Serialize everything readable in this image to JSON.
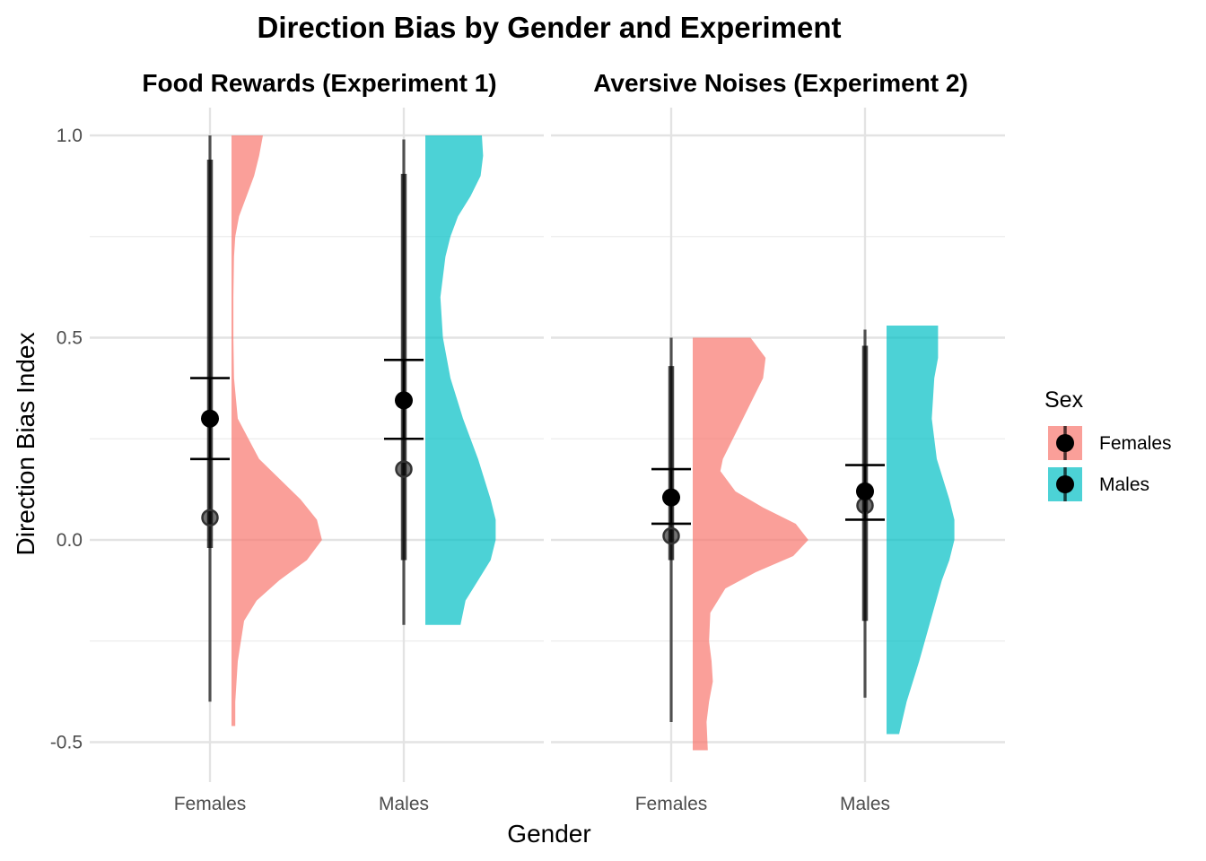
{
  "chart_data": {
    "type": "violin",
    "title": "Direction Bias by Gender and Experiment",
    "xlabel": "Gender",
    "ylabel": "Direction Bias Index",
    "ylim": [
      -0.6,
      1.0
    ],
    "yticks": [
      -0.5,
      0.0,
      0.5,
      1.0
    ],
    "ytick_labels": [
      "-0.5",
      "0.0",
      "0.5",
      "1.0"
    ],
    "categories": [
      "Females",
      "Males"
    ],
    "grid": true,
    "legend": {
      "title": "Sex",
      "position": "right",
      "entries": [
        {
          "label": "Females",
          "color": "#F8766D"
        },
        {
          "label": "Males",
          "color": "#00BFC4"
        }
      ]
    },
    "panels": [
      {
        "title": "Food Rewards (Experiment 1)",
        "groups": [
          {
            "category": "Females",
            "color": "#F8766D",
            "mean": 0.3,
            "ci_low": 0.2,
            "ci_high": 0.4,
            "median": 0.055,
            "q_low": -0.02,
            "q_high": 0.94,
            "min": -0.4,
            "max": 1.0,
            "density": [
              [
                1.0,
                0.25
              ],
              [
                0.95,
                0.22
              ],
              [
                0.9,
                0.18
              ],
              [
                0.85,
                0.12
              ],
              [
                0.8,
                0.06
              ],
              [
                0.75,
                0.03
              ],
              [
                0.7,
                0.02
              ],
              [
                0.6,
                0.015
              ],
              [
                0.5,
                0.015
              ],
              [
                0.4,
                0.02
              ],
              [
                0.3,
                0.05
              ],
              [
                0.2,
                0.22
              ],
              [
                0.1,
                0.55
              ],
              [
                0.05,
                0.68
              ],
              [
                0.0,
                0.72
              ],
              [
                -0.05,
                0.6
              ],
              [
                -0.1,
                0.38
              ],
              [
                -0.15,
                0.2
              ],
              [
                -0.2,
                0.1
              ],
              [
                -0.3,
                0.05
              ],
              [
                -0.4,
                0.03
              ],
              [
                -0.46,
                0.03
              ]
            ]
          },
          {
            "category": "Males",
            "color": "#00BFC4",
            "mean": 0.345,
            "ci_low": 0.25,
            "ci_high": 0.445,
            "median": 0.175,
            "q_low": -0.05,
            "q_high": 0.905,
            "min": -0.21,
            "max": 0.99,
            "density": [
              [
                1.0,
                0.45
              ],
              [
                0.95,
                0.46
              ],
              [
                0.9,
                0.44
              ],
              [
                0.85,
                0.36
              ],
              [
                0.8,
                0.26
              ],
              [
                0.75,
                0.2
              ],
              [
                0.7,
                0.16
              ],
              [
                0.6,
                0.12
              ],
              [
                0.5,
                0.14
              ],
              [
                0.4,
                0.2
              ],
              [
                0.3,
                0.3
              ],
              [
                0.2,
                0.42
              ],
              [
                0.1,
                0.52
              ],
              [
                0.05,
                0.56
              ],
              [
                0.0,
                0.56
              ],
              [
                -0.05,
                0.52
              ],
              [
                -0.1,
                0.42
              ],
              [
                -0.15,
                0.32
              ],
              [
                -0.21,
                0.28
              ]
            ]
          }
        ]
      },
      {
        "title": "Aversive Noises (Experiment 2)",
        "groups": [
          {
            "category": "Females",
            "color": "#F8766D",
            "mean": 0.105,
            "ci_low": 0.04,
            "ci_high": 0.175,
            "median": 0.01,
            "q_low": -0.05,
            "q_high": 0.43,
            "min": -0.45,
            "max": 0.5,
            "density": [
              [
                0.5,
                0.46
              ],
              [
                0.45,
                0.58
              ],
              [
                0.4,
                0.56
              ],
              [
                0.35,
                0.48
              ],
              [
                0.3,
                0.4
              ],
              [
                0.25,
                0.32
              ],
              [
                0.2,
                0.24
              ],
              [
                0.17,
                0.22
              ],
              [
                0.12,
                0.34
              ],
              [
                0.08,
                0.56
              ],
              [
                0.04,
                0.82
              ],
              [
                0.0,
                0.92
              ],
              [
                -0.04,
                0.8
              ],
              [
                -0.08,
                0.5
              ],
              [
                -0.12,
                0.26
              ],
              [
                -0.18,
                0.14
              ],
              [
                -0.25,
                0.13
              ],
              [
                -0.3,
                0.15
              ],
              [
                -0.35,
                0.16
              ],
              [
                -0.4,
                0.13
              ],
              [
                -0.45,
                0.11
              ],
              [
                -0.52,
                0.12
              ]
            ]
          },
          {
            "category": "Males",
            "color": "#00BFC4",
            "mean": 0.12,
            "ci_low": 0.05,
            "ci_high": 0.185,
            "median": 0.085,
            "q_low": -0.2,
            "q_high": 0.48,
            "min": -0.39,
            "max": 0.52,
            "density": [
              [
                0.53,
                0.41
              ],
              [
                0.45,
                0.41
              ],
              [
                0.4,
                0.38
              ],
              [
                0.3,
                0.36
              ],
              [
                0.2,
                0.4
              ],
              [
                0.1,
                0.5
              ],
              [
                0.05,
                0.54
              ],
              [
                0.0,
                0.54
              ],
              [
                -0.05,
                0.5
              ],
              [
                -0.1,
                0.44
              ],
              [
                -0.2,
                0.35
              ],
              [
                -0.3,
                0.26
              ],
              [
                -0.4,
                0.16
              ],
              [
                -0.48,
                0.1
              ]
            ]
          }
        ]
      }
    ]
  }
}
